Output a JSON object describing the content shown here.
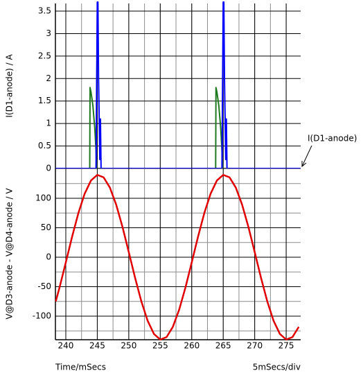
{
  "chart_data": [
    {
      "type": "line",
      "ylabel": "I(D1-anode) / A",
      "annotation": "I(D1-anode)",
      "xlim": [
        238.35,
        277.3
      ],
      "xticks": [
        240,
        245,
        250,
        255,
        260,
        265,
        270,
        275
      ],
      "xgrid_step": 2.5,
      "ylim": [
        0,
        3.67
      ],
      "yticks": [
        0,
        0.5,
        1,
        1.5,
        2,
        2.5,
        3,
        3.5
      ],
      "grid": true,
      "series": [
        {
          "color": "#1f7a1f",
          "x": [
            243.8,
            243.85,
            244.0,
            244.3,
            244.6,
            244.8,
            244.9,
            254,
            263.8,
            263.85,
            264.0,
            264.3,
            264.6,
            264.8,
            264.9
          ],
          "values": [
            0,
            1.8,
            1.7,
            1.4,
            0.9,
            0.4,
            0,
            null,
            0,
            1.8,
            1.7,
            1.4,
            0.9,
            0.4,
            0
          ]
        },
        {
          "color": "#0000ff",
          "x": [
            238.35,
            244.8,
            245.0,
            245.1,
            245.2,
            245.4,
            245.5,
            245.6,
            245.8,
            264.8,
            265.0,
            265.1,
            265.2,
            265.4,
            265.5,
            265.6,
            265.8,
            277.3
          ],
          "values": [
            0,
            0,
            3.7,
            3.7,
            2.0,
            0.2,
            1.1,
            0,
            0,
            0,
            3.7,
            3.7,
            2.0,
            0.2,
            1.1,
            0,
            0,
            0
          ]
        }
      ]
    },
    {
      "type": "line",
      "ylabel": "V@D3-anode - V@D4-anode / V",
      "xlabel": "Time/mSecs",
      "annotation": "5mSecs/div",
      "xlim": [
        238.35,
        277.3
      ],
      "xticks": [
        240,
        245,
        250,
        255,
        260,
        265,
        270,
        275
      ],
      "xgrid_step": 2.5,
      "ylim": [
        -140,
        150.6
      ],
      "yticks": [
        -100,
        -50,
        0,
        50,
        100
      ],
      "ygrid_step": 25,
      "grid": true,
      "series": [
        {
          "color": "#e00000",
          "x": [
            238.4,
            239,
            240,
            241,
            242,
            243,
            244,
            245,
            246,
            247,
            248,
            249,
            250,
            251,
            252,
            253,
            254,
            255,
            256,
            257,
            258,
            259,
            260,
            261,
            262,
            263,
            264,
            265,
            266,
            267,
            268,
            269,
            270,
            271,
            272,
            273,
            274,
            275,
            276,
            277
          ],
          "values": [
            -75,
            -51.5,
            -8.8,
            34.8,
            75.0,
            107.9,
            130.2,
            139.7,
            135.6,
            118.2,
            89.2,
            51.5,
            8.8,
            -34.8,
            -75.0,
            -107.9,
            -130.2,
            -139.7,
            -135.6,
            -118.2,
            -89.2,
            -51.5,
            -8.8,
            34.8,
            75.0,
            107.9,
            130.2,
            139.7,
            135.6,
            118.2,
            89.2,
            51.5,
            8.8,
            -34.8,
            -75.0,
            -107.9,
            -130.2,
            -139.7,
            -135.6,
            -118.2
          ]
        }
      ]
    }
  ]
}
